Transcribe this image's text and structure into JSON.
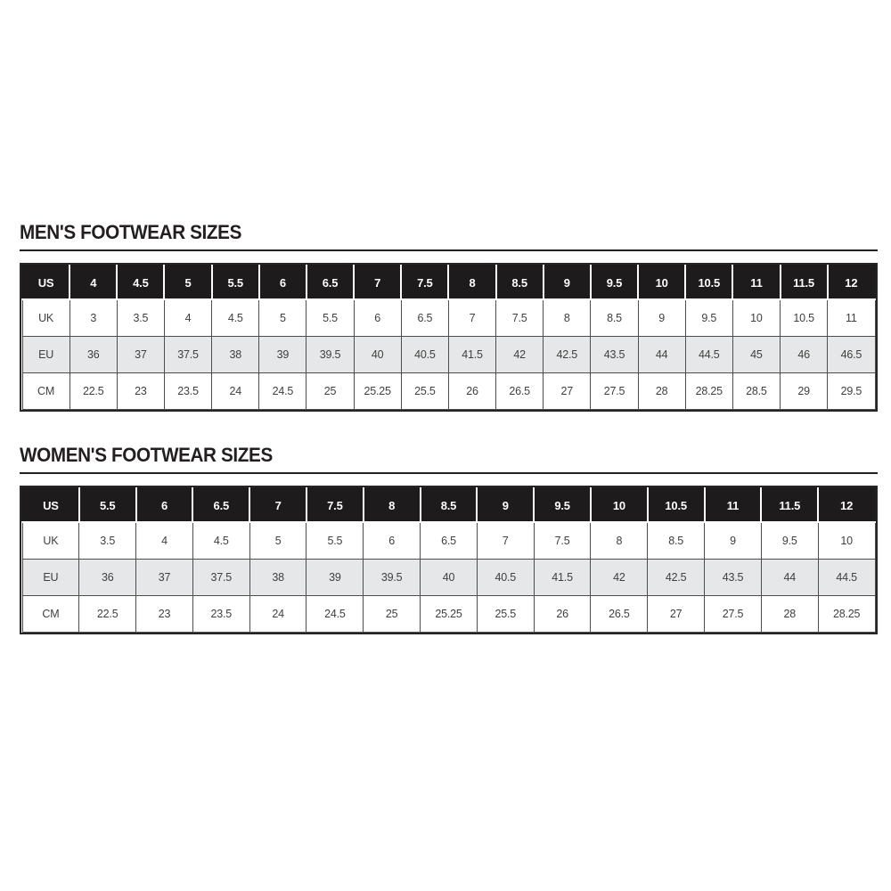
{
  "page": {
    "background": "#ffffff"
  },
  "colors": {
    "header_bg": "#1d1b1b",
    "shaded_row": "#e6e7e8",
    "grid_border": "#4d4d4d",
    "outer_border": "#262524",
    "text": "#3f3f3e",
    "title": "#231f20"
  },
  "tables": [
    {
      "name": "mens",
      "title": "MEN'S FOOTWEAR SIZES",
      "header": [
        "US",
        "4",
        "4.5",
        "5",
        "5.5",
        "6",
        "6.5",
        "7",
        "7.5",
        "8",
        "8.5",
        "9",
        "9.5",
        "10",
        "10.5",
        "11",
        "11.5",
        "12"
      ],
      "rows": [
        [
          "UK",
          "3",
          "3.5",
          "4",
          "4.5",
          "5",
          "5.5",
          "6",
          "6.5",
          "7",
          "7.5",
          "8",
          "8.5",
          "9",
          "9.5",
          "10",
          "10.5",
          "11"
        ],
        [
          "EU",
          "36",
          "37",
          "37.5",
          "38",
          "39",
          "39.5",
          "40",
          "40.5",
          "41.5",
          "42",
          "42.5",
          "43.5",
          "44",
          "44.5",
          "45",
          "46",
          "46.5"
        ],
        [
          "CM",
          "22.5",
          "23",
          "23.5",
          "24",
          "24.5",
          "25",
          "25.25",
          "25.5",
          "26",
          "26.5",
          "27",
          "27.5",
          "28",
          "28.25",
          "28.5",
          "29",
          "29.5"
        ]
      ]
    },
    {
      "name": "womens",
      "title": "WOMEN'S FOOTWEAR SIZES",
      "header": [
        "US",
        "5.5",
        "6",
        "6.5",
        "7",
        "7.5",
        "8",
        "8.5",
        "9",
        "9.5",
        "10",
        "10.5",
        "11",
        "11.5",
        "12"
      ],
      "rows": [
        [
          "UK",
          "3.5",
          "4",
          "4.5",
          "5",
          "5.5",
          "6",
          "6.5",
          "7",
          "7.5",
          "8",
          "8.5",
          "9",
          "9.5",
          "10"
        ],
        [
          "EU",
          "36",
          "37",
          "37.5",
          "38",
          "39",
          "39.5",
          "40",
          "40.5",
          "41.5",
          "42",
          "42.5",
          "43.5",
          "44",
          "44.5"
        ],
        [
          "CM",
          "22.5",
          "23",
          "23.5",
          "24",
          "24.5",
          "25",
          "25.25",
          "25.5",
          "26",
          "26.5",
          "27",
          "27.5",
          "28",
          "28.25"
        ]
      ]
    }
  ]
}
